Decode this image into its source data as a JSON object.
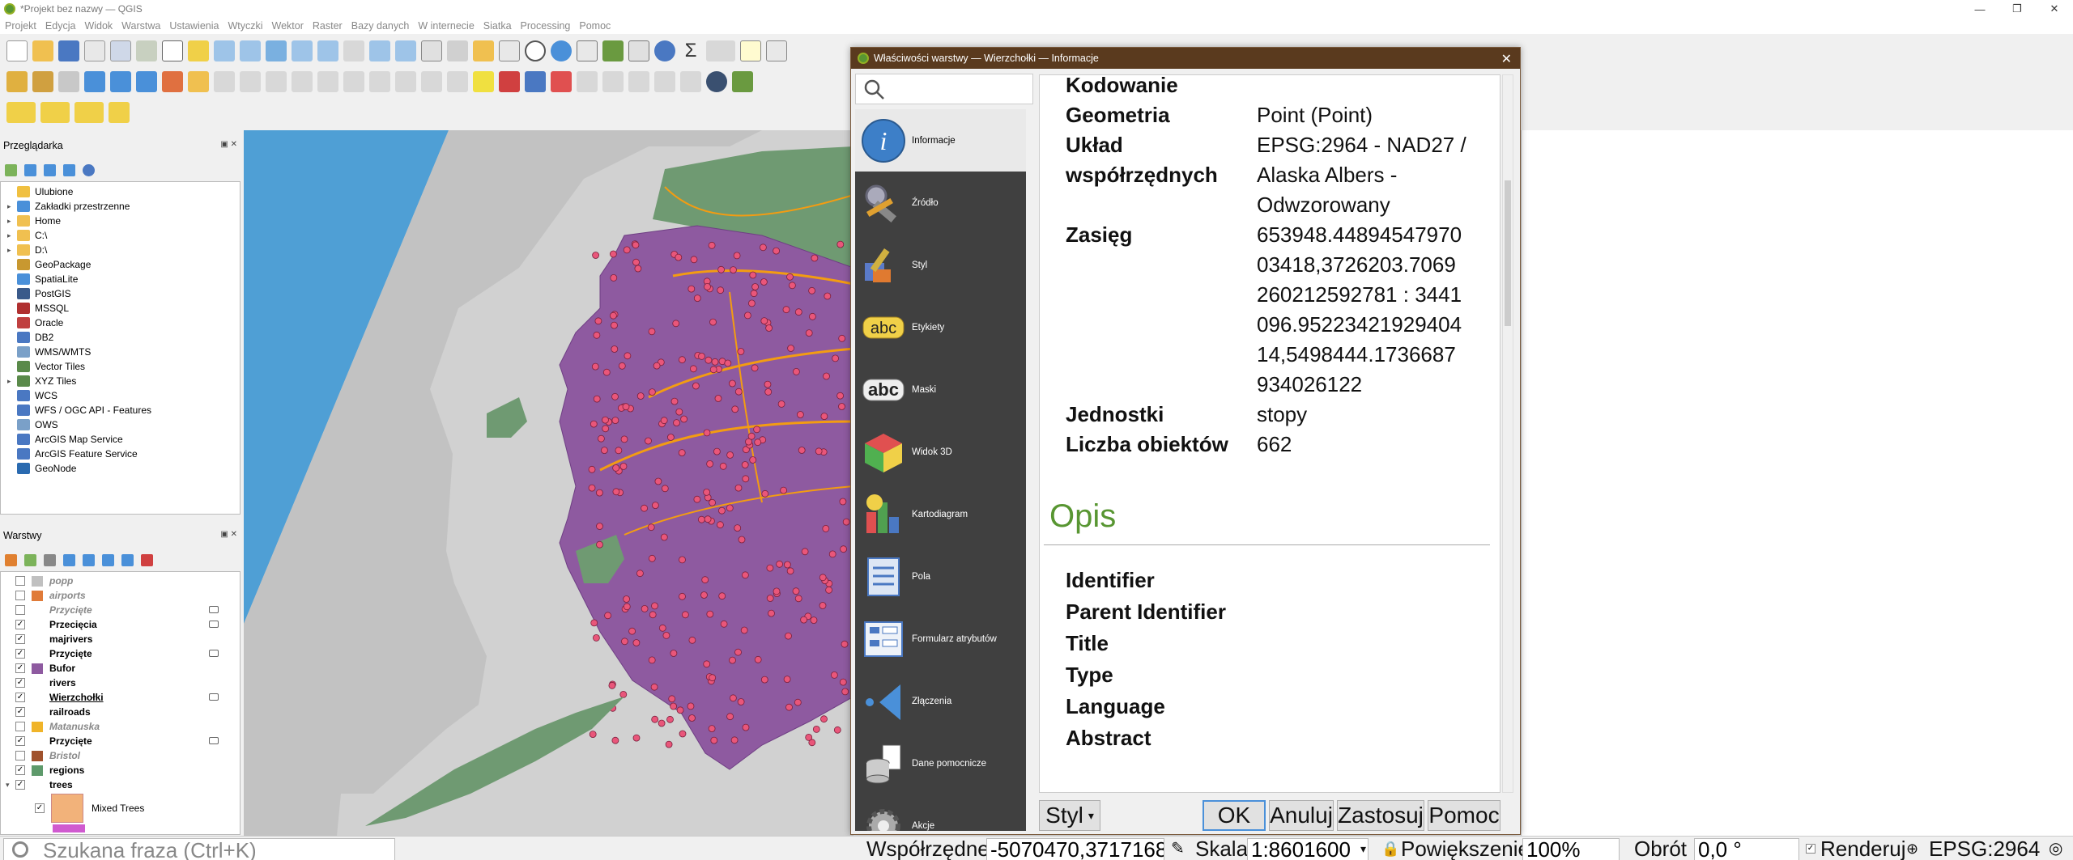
{
  "window": {
    "title": "*Projekt bez nazwy — QGIS",
    "min": "—",
    "max": "❐",
    "close": "✕"
  },
  "menu": [
    "Projekt",
    "Edycja",
    "Widok",
    "Wektor",
    "Ustawienia",
    "Wtyczki",
    "Wektor",
    "Raster",
    "Bazy danych",
    "W internecie",
    "Siatka",
    "Processing",
    "Pomoc"
  ],
  "browser": {
    "title": "Przeglądarka",
    "items": [
      {
        "label": "Ulubione",
        "icon": "star-icon",
        "arrow": ""
      },
      {
        "label": "Zakładki przestrzenne",
        "icon": "bookmark-icon",
        "arrow": "▸"
      },
      {
        "label": "Home",
        "icon": "folder-icon",
        "arrow": "▸"
      },
      {
        "label": "C:\\",
        "icon": "folder-icon",
        "arrow": "▸"
      },
      {
        "label": "D:\\",
        "icon": "folder-icon",
        "arrow": "▸"
      },
      {
        "label": "GeoPackage",
        "icon": "geopackage-icon",
        "arrow": ""
      },
      {
        "label": "SpatiaLite",
        "icon": "spatialite-icon",
        "arrow": ""
      },
      {
        "label": "PostGIS",
        "icon": "postgis-icon",
        "arrow": ""
      },
      {
        "label": "MSSQL",
        "icon": "mssql-icon",
        "arrow": ""
      },
      {
        "label": "Oracle",
        "icon": "oracle-icon",
        "arrow": ""
      },
      {
        "label": "DB2",
        "icon": "db2-icon",
        "arrow": ""
      },
      {
        "label": "WMS/WMTS",
        "icon": "wms-icon",
        "arrow": ""
      },
      {
        "label": "Vector Tiles",
        "icon": "vector-tiles-icon",
        "arrow": ""
      },
      {
        "label": "XYZ Tiles",
        "icon": "xyz-tiles-icon",
        "arrow": "▸"
      },
      {
        "label": "WCS",
        "icon": "wcs-icon",
        "arrow": ""
      },
      {
        "label": "WFS / OGC API - Features",
        "icon": "wfs-icon",
        "arrow": ""
      },
      {
        "label": "OWS",
        "icon": "ows-icon",
        "arrow": ""
      },
      {
        "label": "ArcGIS Map Service",
        "icon": "arcgis-map-icon",
        "arrow": ""
      },
      {
        "label": "ArcGIS Feature Service",
        "icon": "arcgis-feature-icon",
        "arrow": ""
      },
      {
        "label": "GeoNode",
        "icon": "geonode-icon",
        "arrow": ""
      }
    ]
  },
  "layers": {
    "title": "Warstwy",
    "items": [
      {
        "label": "popp",
        "checked": "",
        "swatch": "#c0c0c0",
        "style": "gray"
      },
      {
        "label": "airports",
        "checked": "",
        "swatch": "#e07b39",
        "style": "gray"
      },
      {
        "label": "Przycięte",
        "checked": "",
        "swatch": "#ffffff",
        "style": "gray"
      },
      {
        "label": "Przecięcia",
        "checked": "✓",
        "swatch": "#ffffff",
        "style": "bold"
      },
      {
        "label": "majrivers",
        "checked": "✓",
        "swatch": "#ffffff",
        "style": "bold"
      },
      {
        "label": "Przycięte",
        "checked": "✓",
        "swatch": "#ffffff",
        "style": "bold"
      },
      {
        "label": "Bufor",
        "checked": "✓",
        "swatch": "#8e5aa0",
        "style": "bold"
      },
      {
        "label": "rivers",
        "checked": "✓",
        "swatch": "#ffffff",
        "style": "bold"
      },
      {
        "label": "Wierzchołki",
        "checked": "✓",
        "swatch": "#ffffff",
        "style": "active"
      },
      {
        "label": "railroads",
        "checked": "✓",
        "swatch": "#ffffff",
        "style": "bold"
      },
      {
        "label": "Matanuska",
        "checked": "",
        "swatch": "#f0b429",
        "style": "gray"
      },
      {
        "label": "Przycięte",
        "checked": "✓",
        "swatch": "#ffffff",
        "style": "bold"
      },
      {
        "label": "Bristol",
        "checked": "",
        "swatch": "#a0522d",
        "style": "gray"
      },
      {
        "label": "regions",
        "checked": "✓",
        "swatch": "#5e9a6b",
        "style": "bold"
      },
      {
        "label": "trees",
        "checked": "✓",
        "swatch": "#ffffff",
        "style": "bold"
      }
    ],
    "legend_item": "Mixed Trees"
  },
  "dialog": {
    "title": "Właściwości warstwy — Wierzchołki — Informacje",
    "close": "✕",
    "sidebar": [
      {
        "label": "Informacje",
        "icon": "info-icon"
      },
      {
        "label": "Źródło",
        "icon": "source-tools-icon"
      },
      {
        "label": "Styl",
        "icon": "style-brush-icon"
      },
      {
        "label": "Etykiety",
        "icon": "labels-abc-icon"
      },
      {
        "label": "Maski",
        "icon": "masks-abc-icon"
      },
      {
        "label": "Widok 3D",
        "icon": "3d-cube-icon"
      },
      {
        "label": "Kartodiagram",
        "icon": "diagram-icon"
      },
      {
        "label": "Pola",
        "icon": "fields-icon"
      },
      {
        "label": "Formularz atrybutów",
        "icon": "attribute-form-icon"
      },
      {
        "label": "Złączenia",
        "icon": "joins-icon"
      },
      {
        "label": "Dane pomocnicze",
        "icon": "auxiliary-storage-icon"
      },
      {
        "label": "Akcje",
        "icon": "actions-gear-icon"
      }
    ],
    "info": [
      {
        "k": "Kodowanie",
        "v": ""
      },
      {
        "k": "Geometria",
        "v": "Point (Point)"
      },
      {
        "k": "Układ współrzędnych",
        "v": "EPSG:2964 - NAD27 / Alaska Albers - Odwzorowany"
      },
      {
        "k": "Zasięg",
        "v": "653948.4489454797003418,3726203.7069260212592781 : 3441096.9522342192940414,5498444.1736687934026122"
      },
      {
        "k": "Jednostki",
        "v": "stopy"
      },
      {
        "k": "Liczba obiektów",
        "v": "662"
      }
    ],
    "section": "Opis",
    "meta": [
      "Identifier",
      "Parent Identifier",
      "Title",
      "Type",
      "Language",
      "Abstract"
    ],
    "buttons": {
      "style": "Styl",
      "ok": "OK",
      "cancel": "Anuluj",
      "apply": "Zastosuj",
      "help": "Pomoc"
    }
  },
  "status": {
    "search_placeholder": "Szukana fraza (Ctrl+K)",
    "coord_label": "Współrzędne",
    "coord_value": "-5070470,3717168",
    "scale_label": "Skala",
    "scale_value": "1:8601600",
    "zoom_label": "Powiększenie",
    "zoom_value": "100%",
    "rotation_label": "Obrót",
    "rotation_value": "0,0 °",
    "render_label": "Renderuj",
    "crs": "EPSG:2964"
  },
  "colors": {
    "titlebar_dialog": "#5a3a1e",
    "accent_green": "#589632",
    "sidebar_bg": "#404040",
    "map_purple": "#8e5aa0",
    "map_green": "#5e9a6b",
    "ocean": "#4f9fd5",
    "rivers": "#f39c12",
    "points": "#e9567a"
  }
}
